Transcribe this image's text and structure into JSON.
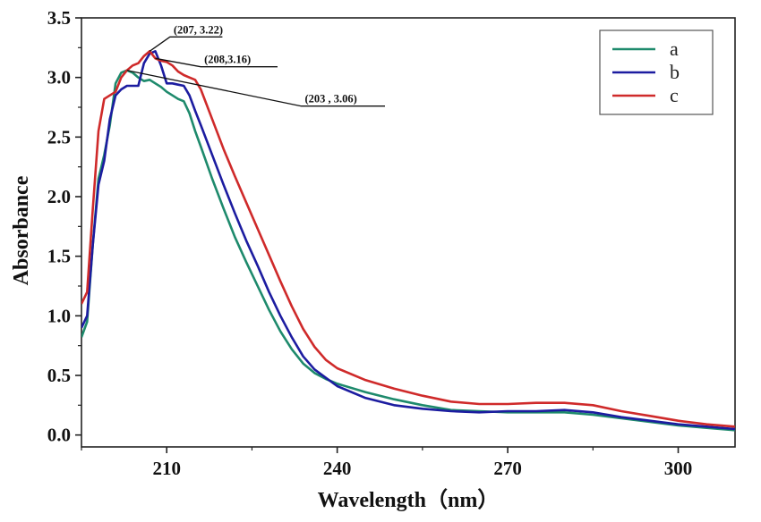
{
  "chart_data": {
    "type": "line",
    "title": "",
    "xlabel": "Wavelength（nm）",
    "ylabel": "Absorbance",
    "xlim": [
      195,
      310
    ],
    "ylim": [
      -0.1,
      3.5
    ],
    "xticks": [
      210,
      240,
      270,
      300
    ],
    "yticks": [
      0.0,
      0.5,
      1.0,
      1.5,
      2.0,
      2.5,
      3.0,
      3.5
    ],
    "xtick_labels": [
      "210",
      "240",
      "270",
      "300"
    ],
    "ytick_labels": [
      "0.0",
      "0.5",
      "1.0",
      "1.5",
      "2.0",
      "2.5",
      "3.0",
      "3.5"
    ],
    "grid": false,
    "legend_position": "top-right",
    "series": [
      {
        "name": "a",
        "color": "#1e8a6c",
        "x": [
          195,
          196,
          197,
          198,
          199,
          200,
          201,
          202,
          203,
          204,
          205,
          206,
          207,
          208,
          209,
          210,
          211,
          212,
          213,
          214,
          215,
          216,
          218,
          220,
          222,
          224,
          226,
          228,
          230,
          232,
          234,
          236,
          238,
          240,
          245,
          250,
          255,
          260,
          265,
          270,
          275,
          280,
          285,
          290,
          295,
          300,
          305,
          310
        ],
        "y": [
          0.82,
          0.95,
          1.6,
          2.15,
          2.35,
          2.6,
          2.95,
          3.04,
          3.06,
          3.04,
          3.0,
          2.97,
          2.98,
          2.95,
          2.92,
          2.88,
          2.85,
          2.82,
          2.8,
          2.7,
          2.55,
          2.42,
          2.15,
          1.9,
          1.66,
          1.45,
          1.25,
          1.05,
          0.87,
          0.72,
          0.6,
          0.52,
          0.47,
          0.43,
          0.36,
          0.3,
          0.25,
          0.21,
          0.2,
          0.19,
          0.19,
          0.19,
          0.17,
          0.14,
          0.11,
          0.08,
          0.06,
          0.04
        ]
      },
      {
        "name": "b",
        "color": "#1c1ca0",
        "x": [
          195,
          196,
          197,
          198,
          199,
          200,
          201,
          202,
          203,
          204,
          205,
          206,
          207,
          208,
          209,
          210,
          211,
          212,
          213,
          214,
          215,
          216,
          218,
          220,
          222,
          224,
          226,
          228,
          230,
          232,
          234,
          236,
          238,
          240,
          245,
          250,
          255,
          260,
          265,
          270,
          275,
          280,
          285,
          290,
          295,
          300,
          305,
          310
        ],
        "y": [
          0.9,
          1.0,
          1.6,
          2.1,
          2.3,
          2.65,
          2.85,
          2.9,
          2.93,
          2.93,
          2.93,
          3.12,
          3.2,
          3.22,
          3.1,
          2.95,
          2.95,
          2.94,
          2.93,
          2.85,
          2.72,
          2.6,
          2.35,
          2.1,
          1.86,
          1.63,
          1.42,
          1.2,
          1.0,
          0.82,
          0.66,
          0.55,
          0.48,
          0.41,
          0.31,
          0.25,
          0.22,
          0.2,
          0.19,
          0.2,
          0.2,
          0.21,
          0.19,
          0.15,
          0.12,
          0.09,
          0.07,
          0.05
        ]
      },
      {
        "name": "c",
        "color": "#cf2a2a",
        "x": [
          195,
          196,
          197,
          198,
          199,
          200,
          201,
          202,
          203,
          204,
          205,
          206,
          207,
          208,
          209,
          210,
          211,
          212,
          213,
          214,
          215,
          216,
          218,
          220,
          222,
          224,
          226,
          228,
          230,
          232,
          234,
          236,
          238,
          240,
          245,
          250,
          255,
          260,
          265,
          270,
          275,
          280,
          285,
          290,
          295,
          300,
          305,
          310
        ],
        "y": [
          1.1,
          1.2,
          1.9,
          2.55,
          2.82,
          2.85,
          2.88,
          3.0,
          3.06,
          3.1,
          3.12,
          3.18,
          3.22,
          3.16,
          3.14,
          3.13,
          3.1,
          3.05,
          3.02,
          3.0,
          2.98,
          2.9,
          2.65,
          2.4,
          2.17,
          1.95,
          1.73,
          1.51,
          1.29,
          1.08,
          0.89,
          0.74,
          0.63,
          0.56,
          0.46,
          0.39,
          0.33,
          0.28,
          0.26,
          0.26,
          0.27,
          0.27,
          0.25,
          0.2,
          0.16,
          0.12,
          0.09,
          0.07
        ]
      }
    ],
    "annotations": [
      {
        "text": "(207, 3.22)",
        "x": 207,
        "y": 3.22,
        "label_x": 211.2,
        "label_y": 3.37,
        "line_end_x": 219.8
      },
      {
        "text": "(208,3.16)",
        "x": 208,
        "y": 3.16,
        "label_x": 216.6,
        "label_y": 3.12,
        "line_end_x": 229.5
      },
      {
        "text": "(203 , 3.06)",
        "x": 203,
        "y": 3.06,
        "label_x": 234.3,
        "label_y": 2.79,
        "line_end_x": 248.4
      }
    ]
  }
}
